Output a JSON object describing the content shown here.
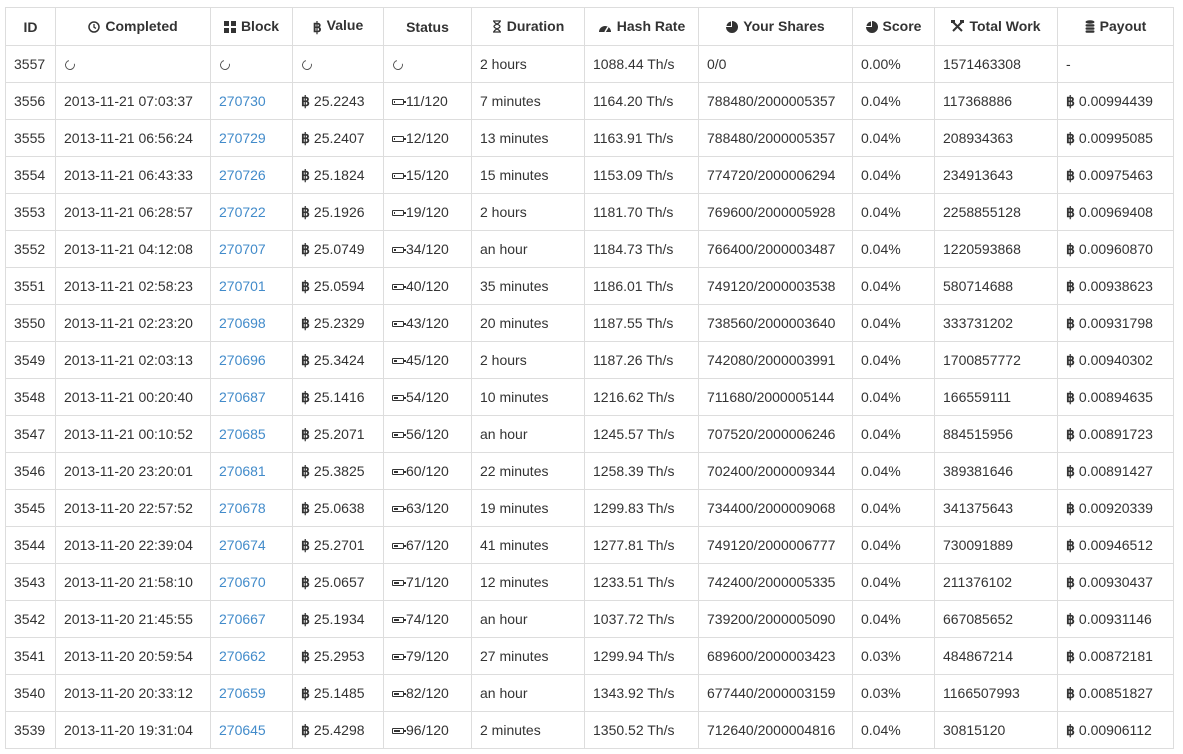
{
  "table": {
    "headers": [
      {
        "label": "ID",
        "icon": ""
      },
      {
        "label": "Completed",
        "icon": "clock-icon"
      },
      {
        "label": "Block",
        "icon": "grid-icon"
      },
      {
        "label": "Value",
        "icon": "bitcoin-icon"
      },
      {
        "label": "Status",
        "icon": ""
      },
      {
        "label": "Duration",
        "icon": "hourglass-icon"
      },
      {
        "label": "Hash Rate",
        "icon": "dashboard-icon"
      },
      {
        "label": "Your Shares",
        "icon": "pie-chart-icon"
      },
      {
        "label": "Score",
        "icon": "pie-chart-icon"
      },
      {
        "label": "Total Work",
        "icon": "tools-icon"
      },
      {
        "label": "Payout",
        "icon": "coins-icon"
      }
    ],
    "currency_symbol": "฿",
    "link_color": "#428bca",
    "pending_row": {
      "id": "3557",
      "duration": "2 hours",
      "hash_rate": "1088.44 Th/s",
      "shares": "0/0",
      "score": "0.00%",
      "total_work": "1571463308",
      "payout": "-"
    },
    "rows": [
      {
        "id": "3556",
        "completed": "2013-11-21 07:03:37",
        "block": "270730",
        "value": "25.2243",
        "status": "11/120",
        "confirmations": 11,
        "duration": "7 minutes",
        "hash_rate": "1164.20 Th/s",
        "shares": "788480/2000005357",
        "score": "0.04%",
        "total_work": "117368886",
        "payout": "0.00994439"
      },
      {
        "id": "3555",
        "completed": "2013-11-21 06:56:24",
        "block": "270729",
        "value": "25.2407",
        "status": "12/120",
        "confirmations": 12,
        "duration": "13 minutes",
        "hash_rate": "1163.91 Th/s",
        "shares": "788480/2000005357",
        "score": "0.04%",
        "total_work": "208934363",
        "payout": "0.00995085"
      },
      {
        "id": "3554",
        "completed": "2013-11-21 06:43:33",
        "block": "270726",
        "value": "25.1824",
        "status": "15/120",
        "confirmations": 15,
        "duration": "15 minutes",
        "hash_rate": "1153.09 Th/s",
        "shares": "774720/2000006294",
        "score": "0.04%",
        "total_work": "234913643",
        "payout": "0.00975463"
      },
      {
        "id": "3553",
        "completed": "2013-11-21 06:28:57",
        "block": "270722",
        "value": "25.1926",
        "status": "19/120",
        "confirmations": 19,
        "duration": "2 hours",
        "hash_rate": "1181.70 Th/s",
        "shares": "769600/2000005928",
        "score": "0.04%",
        "total_work": "2258855128",
        "payout": "0.00969408"
      },
      {
        "id": "3552",
        "completed": "2013-11-21 04:12:08",
        "block": "270707",
        "value": "25.0749",
        "status": "34/120",
        "confirmations": 34,
        "duration": "an hour",
        "hash_rate": "1184.73 Th/s",
        "shares": "766400/2000003487",
        "score": "0.04%",
        "total_work": "1220593868",
        "payout": "0.00960870"
      },
      {
        "id": "3551",
        "completed": "2013-11-21 02:58:23",
        "block": "270701",
        "value": "25.0594",
        "status": "40/120",
        "confirmations": 40,
        "duration": "35 minutes",
        "hash_rate": "1186.01 Th/s",
        "shares": "749120/2000003538",
        "score": "0.04%",
        "total_work": "580714688",
        "payout": "0.00938623"
      },
      {
        "id": "3550",
        "completed": "2013-11-21 02:23:20",
        "block": "270698",
        "value": "25.2329",
        "status": "43/120",
        "confirmations": 43,
        "duration": "20 minutes",
        "hash_rate": "1187.55 Th/s",
        "shares": "738560/2000003640",
        "score": "0.04%",
        "total_work": "333731202",
        "payout": "0.00931798"
      },
      {
        "id": "3549",
        "completed": "2013-11-21 02:03:13",
        "block": "270696",
        "value": "25.3424",
        "status": "45/120",
        "confirmations": 45,
        "duration": "2 hours",
        "hash_rate": "1187.26 Th/s",
        "shares": "742080/2000003991",
        "score": "0.04%",
        "total_work": "1700857772",
        "payout": "0.00940302"
      },
      {
        "id": "3548",
        "completed": "2013-11-21 00:20:40",
        "block": "270687",
        "value": "25.1416",
        "status": "54/120",
        "confirmations": 54,
        "duration": "10 minutes",
        "hash_rate": "1216.62 Th/s",
        "shares": "711680/2000005144",
        "score": "0.04%",
        "total_work": "166559111",
        "payout": "0.00894635"
      },
      {
        "id": "3547",
        "completed": "2013-11-21 00:10:52",
        "block": "270685",
        "value": "25.2071",
        "status": "56/120",
        "confirmations": 56,
        "duration": "an hour",
        "hash_rate": "1245.57 Th/s",
        "shares": "707520/2000006246",
        "score": "0.04%",
        "total_work": "884515956",
        "payout": "0.00891723"
      },
      {
        "id": "3546",
        "completed": "2013-11-20 23:20:01",
        "block": "270681",
        "value": "25.3825",
        "status": "60/120",
        "confirmations": 60,
        "duration": "22 minutes",
        "hash_rate": "1258.39 Th/s",
        "shares": "702400/2000009344",
        "score": "0.04%",
        "total_work": "389381646",
        "payout": "0.00891427"
      },
      {
        "id": "3545",
        "completed": "2013-11-20 22:57:52",
        "block": "270678",
        "value": "25.0638",
        "status": "63/120",
        "confirmations": 63,
        "duration": "19 minutes",
        "hash_rate": "1299.83 Th/s",
        "shares": "734400/2000009068",
        "score": "0.04%",
        "total_work": "341375643",
        "payout": "0.00920339"
      },
      {
        "id": "3544",
        "completed": "2013-11-20 22:39:04",
        "block": "270674",
        "value": "25.2701",
        "status": "67/120",
        "confirmations": 67,
        "duration": "41 minutes",
        "hash_rate": "1277.81 Th/s",
        "shares": "749120/2000006777",
        "score": "0.04%",
        "total_work": "730091889",
        "payout": "0.00946512"
      },
      {
        "id": "3543",
        "completed": "2013-11-20 21:58:10",
        "block": "270670",
        "value": "25.0657",
        "status": "71/120",
        "confirmations": 71,
        "duration": "12 minutes",
        "hash_rate": "1233.51 Th/s",
        "shares": "742400/2000005335",
        "score": "0.04%",
        "total_work": "211376102",
        "payout": "0.00930437"
      },
      {
        "id": "3542",
        "completed": "2013-11-20 21:45:55",
        "block": "270667",
        "value": "25.1934",
        "status": "74/120",
        "confirmations": 74,
        "duration": "an hour",
        "hash_rate": "1037.72 Th/s",
        "shares": "739200/2000005090",
        "score": "0.04%",
        "total_work": "667085652",
        "payout": "0.00931146"
      },
      {
        "id": "3541",
        "completed": "2013-11-20 20:59:54",
        "block": "270662",
        "value": "25.2953",
        "status": "79/120",
        "confirmations": 79,
        "duration": "27 minutes",
        "hash_rate": "1299.94 Th/s",
        "shares": "689600/2000003423",
        "score": "0.03%",
        "total_work": "484867214",
        "payout": "0.00872181"
      },
      {
        "id": "3540",
        "completed": "2013-11-20 20:33:12",
        "block": "270659",
        "value": "25.1485",
        "status": "82/120",
        "confirmations": 82,
        "duration": "an hour",
        "hash_rate": "1343.92 Th/s",
        "shares": "677440/2000003159",
        "score": "0.03%",
        "total_work": "1166507993",
        "payout": "0.00851827"
      },
      {
        "id": "3539",
        "completed": "2013-11-20 19:31:04",
        "block": "270645",
        "value": "25.4298",
        "status": "96/120",
        "confirmations": 96,
        "duration": "2 minutes",
        "hash_rate": "1350.52 Th/s",
        "shares": "712640/2000004816",
        "score": "0.04%",
        "total_work": "30815120",
        "payout": "0.00906112"
      }
    ]
  }
}
